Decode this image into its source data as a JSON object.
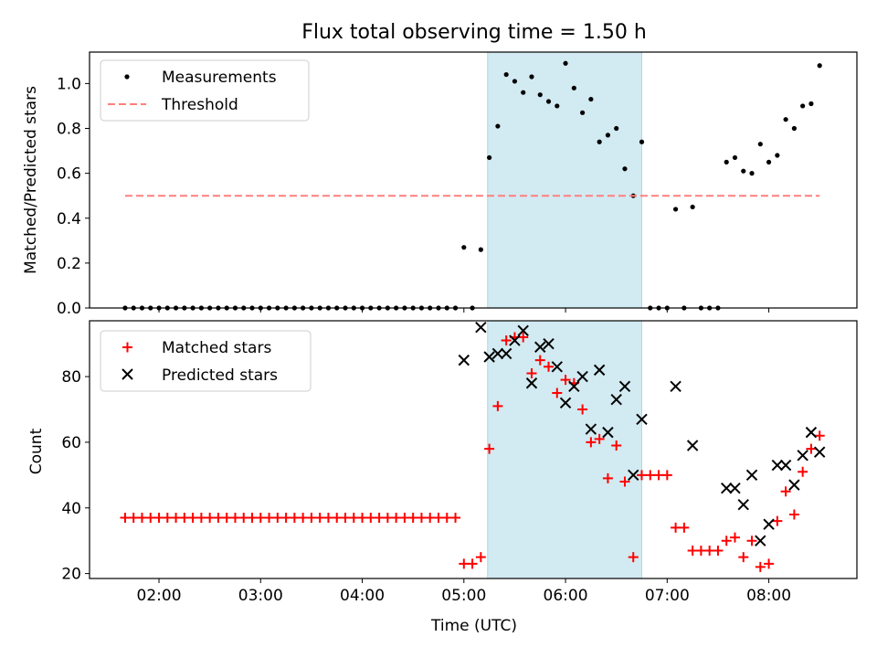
{
  "figure": {
    "title": "Flux total observing time = 1.50 h",
    "xlabel": "Time (UTC)"
  },
  "chart_data": [
    {
      "type": "scatter",
      "ylabel": "Matched/Predicted stars",
      "xlim": [
        "01:19",
        "08:52"
      ],
      "ylim": [
        0,
        1.14
      ],
      "xticks": [
        "02:00",
        "03:00",
        "04:00",
        "05:00",
        "06:00",
        "07:00",
        "08:00"
      ],
      "yticks": [
        "0.0",
        "0.2",
        "0.4",
        "0.6",
        "0.8",
        "1.0"
      ],
      "shaded_region": {
        "x": [
          "05:14",
          "06:45"
        ],
        "color": "#add8e6"
      },
      "legend": {
        "position": "top-left",
        "entries": [
          "Measurements",
          "Threshold"
        ]
      },
      "series": [
        {
          "name": "Measurements",
          "marker": "dot",
          "color": "#000000",
          "points": [
            [
              "01:40",
              0
            ],
            [
              "01:45",
              0
            ],
            [
              "01:50",
              0
            ],
            [
              "01:55",
              0
            ],
            [
              "02:00",
              0
            ],
            [
              "02:05",
              0
            ],
            [
              "02:10",
              0
            ],
            [
              "02:15",
              0
            ],
            [
              "02:20",
              0
            ],
            [
              "02:25",
              0
            ],
            [
              "02:30",
              0
            ],
            [
              "02:35",
              0
            ],
            [
              "02:40",
              0
            ],
            [
              "02:45",
              0
            ],
            [
              "02:50",
              0
            ],
            [
              "02:55",
              0
            ],
            [
              "03:00",
              0
            ],
            [
              "03:05",
              0
            ],
            [
              "03:10",
              0
            ],
            [
              "03:15",
              0
            ],
            [
              "03:20",
              0
            ],
            [
              "03:25",
              0
            ],
            [
              "03:30",
              0
            ],
            [
              "03:35",
              0
            ],
            [
              "03:40",
              0
            ],
            [
              "03:45",
              0
            ],
            [
              "03:50",
              0
            ],
            [
              "03:55",
              0
            ],
            [
              "04:00",
              0
            ],
            [
              "04:05",
              0
            ],
            [
              "04:10",
              0
            ],
            [
              "04:15",
              0
            ],
            [
              "04:20",
              0
            ],
            [
              "04:25",
              0
            ],
            [
              "04:30",
              0
            ],
            [
              "04:35",
              0
            ],
            [
              "04:40",
              0
            ],
            [
              "04:45",
              0
            ],
            [
              "04:50",
              0
            ],
            [
              "04:55",
              0
            ],
            [
              "05:00",
              0.27
            ],
            [
              "05:05",
              0
            ],
            [
              "05:10",
              0.26
            ],
            [
              "05:15",
              0.67
            ],
            [
              "05:20",
              0.81
            ],
            [
              "05:25",
              1.04
            ],
            [
              "05:30",
              1.01
            ],
            [
              "05:35",
              0.96
            ],
            [
              "05:40",
              1.03
            ],
            [
              "05:45",
              0.95
            ],
            [
              "05:50",
              0.92
            ],
            [
              "05:55",
              0.9
            ],
            [
              "06:00",
              1.09
            ],
            [
              "06:05",
              0.98
            ],
            [
              "06:10",
              0.87
            ],
            [
              "06:15",
              0.93
            ],
            [
              "06:20",
              0.74
            ],
            [
              "06:25",
              0.77
            ],
            [
              "06:30",
              0.8
            ],
            [
              "06:35",
              0.62
            ],
            [
              "06:40",
              0.5
            ],
            [
              "06:45",
              0.74
            ],
            [
              "06:50",
              0
            ],
            [
              "06:55",
              0
            ],
            [
              "07:00",
              0
            ],
            [
              "07:05",
              0.44
            ],
            [
              "07:10",
              0
            ],
            [
              "07:15",
              0.45
            ],
            [
              "07:20",
              0
            ],
            [
              "07:25",
              0
            ],
            [
              "07:30",
              0
            ],
            [
              "07:35",
              0.65
            ],
            [
              "07:40",
              0.67
            ],
            [
              "07:45",
              0.61
            ],
            [
              "07:50",
              0.6
            ],
            [
              "07:55",
              0.73
            ],
            [
              "08:00",
              0.65
            ],
            [
              "08:05",
              0.68
            ],
            [
              "08:10",
              0.84
            ],
            [
              "08:15",
              0.8
            ],
            [
              "08:20",
              0.9
            ],
            [
              "08:25",
              0.91
            ],
            [
              "08:30",
              1.08
            ]
          ]
        },
        {
          "name": "Threshold",
          "line": "dashed",
          "color": "#ff7f7f",
          "points": [
            [
              "01:40",
              0.5
            ],
            [
              "08:30",
              0.5
            ]
          ]
        }
      ]
    },
    {
      "type": "scatter",
      "ylabel": "Count",
      "xlim": [
        "01:19",
        "08:52"
      ],
      "ylim": [
        18.5,
        97
      ],
      "xticks": [
        "02:00",
        "03:00",
        "04:00",
        "05:00",
        "06:00",
        "07:00",
        "08:00"
      ],
      "yticks": [
        "20",
        "40",
        "60",
        "80"
      ],
      "shaded_region": {
        "x": [
          "05:14",
          "06:45"
        ],
        "color": "#add8e6"
      },
      "legend": {
        "position": "top-left",
        "entries": [
          "Matched stars",
          "Predicted stars"
        ]
      },
      "series": [
        {
          "name": "Matched stars",
          "marker": "plus",
          "color": "#ff0000",
          "points": [
            [
              "01:40",
              37
            ],
            [
              "01:45",
              37
            ],
            [
              "01:50",
              37
            ],
            [
              "01:55",
              37
            ],
            [
              "02:00",
              37
            ],
            [
              "02:05",
              37
            ],
            [
              "02:10",
              37
            ],
            [
              "02:15",
              37
            ],
            [
              "02:20",
              37
            ],
            [
              "02:25",
              37
            ],
            [
              "02:30",
              37
            ],
            [
              "02:35",
              37
            ],
            [
              "02:40",
              37
            ],
            [
              "02:45",
              37
            ],
            [
              "02:50",
              37
            ],
            [
              "02:55",
              37
            ],
            [
              "03:00",
              37
            ],
            [
              "03:05",
              37
            ],
            [
              "03:10",
              37
            ],
            [
              "03:15",
              37
            ],
            [
              "03:20",
              37
            ],
            [
              "03:25",
              37
            ],
            [
              "03:30",
              37
            ],
            [
              "03:35",
              37
            ],
            [
              "03:40",
              37
            ],
            [
              "03:45",
              37
            ],
            [
              "03:50",
              37
            ],
            [
              "03:55",
              37
            ],
            [
              "04:00",
              37
            ],
            [
              "04:05",
              37
            ],
            [
              "04:10",
              37
            ],
            [
              "04:15",
              37
            ],
            [
              "04:20",
              37
            ],
            [
              "04:25",
              37
            ],
            [
              "04:30",
              37
            ],
            [
              "04:35",
              37
            ],
            [
              "04:40",
              37
            ],
            [
              "04:45",
              37
            ],
            [
              "04:50",
              37
            ],
            [
              "04:55",
              37
            ],
            [
              "05:00",
              23
            ],
            [
              "05:05",
              23
            ],
            [
              "05:10",
              25
            ],
            [
              "05:15",
              58
            ],
            [
              "05:20",
              71
            ],
            [
              "05:25",
              91
            ],
            [
              "05:30",
              92
            ],
            [
              "05:35",
              92
            ],
            [
              "05:40",
              81
            ],
            [
              "05:45",
              85
            ],
            [
              "05:50",
              83
            ],
            [
              "05:55",
              75
            ],
            [
              "06:00",
              79
            ],
            [
              "06:05",
              78
            ],
            [
              "06:10",
              70
            ],
            [
              "06:15",
              60
            ],
            [
              "06:20",
              61
            ],
            [
              "06:25",
              49
            ],
            [
              "06:30",
              59
            ],
            [
              "06:35",
              48
            ],
            [
              "06:40",
              25
            ],
            [
              "06:45",
              50
            ],
            [
              "06:50",
              50
            ],
            [
              "06:55",
              50
            ],
            [
              "07:00",
              50
            ],
            [
              "07:05",
              34
            ],
            [
              "07:10",
              34
            ],
            [
              "07:15",
              27
            ],
            [
              "07:20",
              27
            ],
            [
              "07:25",
              27
            ],
            [
              "07:30",
              27
            ],
            [
              "07:35",
              30
            ],
            [
              "07:40",
              31
            ],
            [
              "07:45",
              25
            ],
            [
              "07:50",
              30
            ],
            [
              "07:55",
              22
            ],
            [
              "08:00",
              23
            ],
            [
              "08:05",
              36
            ],
            [
              "08:10",
              45
            ],
            [
              "08:15",
              38
            ],
            [
              "08:20",
              51
            ],
            [
              "08:25",
              58
            ],
            [
              "08:30",
              62
            ]
          ]
        },
        {
          "name": "Predicted stars",
          "marker": "x",
          "color": "#000000",
          "points": [
            [
              "05:00",
              85
            ],
            [
              "05:10",
              95
            ],
            [
              "05:15",
              86
            ],
            [
              "05:20",
              87
            ],
            [
              "05:25",
              87
            ],
            [
              "05:30",
              91
            ],
            [
              "05:35",
              94
            ],
            [
              "05:40",
              78
            ],
            [
              "05:45",
              89
            ],
            [
              "05:50",
              90
            ],
            [
              "05:55",
              83
            ],
            [
              "06:00",
              72
            ],
            [
              "06:05",
              77
            ],
            [
              "06:10",
              80
            ],
            [
              "06:15",
              64
            ],
            [
              "06:20",
              82
            ],
            [
              "06:25",
              63
            ],
            [
              "06:30",
              73
            ],
            [
              "06:35",
              77
            ],
            [
              "06:40",
              50
            ],
            [
              "06:45",
              67
            ],
            [
              "07:05",
              77
            ],
            [
              "07:15",
              59
            ],
            [
              "07:35",
              46
            ],
            [
              "07:40",
              46
            ],
            [
              "07:45",
              41
            ],
            [
              "07:50",
              50
            ],
            [
              "07:55",
              30
            ],
            [
              "08:00",
              35
            ],
            [
              "08:05",
              53
            ],
            [
              "08:10",
              53
            ],
            [
              "08:15",
              47
            ],
            [
              "08:20",
              56
            ],
            [
              "08:25",
              63
            ],
            [
              "08:30",
              57
            ]
          ]
        }
      ]
    }
  ]
}
